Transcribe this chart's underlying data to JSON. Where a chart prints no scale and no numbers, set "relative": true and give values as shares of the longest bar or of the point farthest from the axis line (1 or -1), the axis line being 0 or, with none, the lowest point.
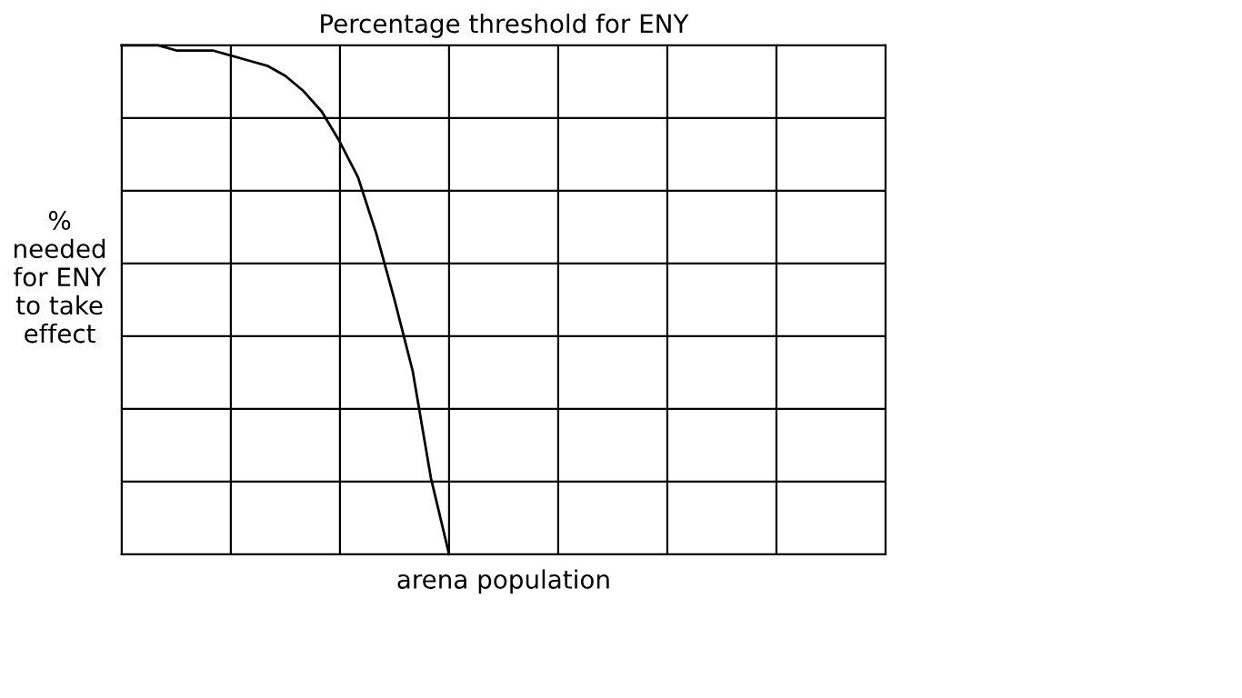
{
  "chart_data": {
    "type": "line",
    "title": "Percentage threshold for ENY",
    "xlabel": "arena population",
    "ylabel": "%\nneeded\nfor ENY\nto take\neffect",
    "relative": true,
    "grid": true,
    "marker": "none",
    "line_style": "solid",
    "categories": [
      null,
      null,
      null,
      null,
      null,
      null,
      null,
      null,
      null,
      null,
      null,
      null,
      null,
      null,
      null,
      null,
      null,
      null,
      null,
      null,
      null,
      null,
      null,
      null,
      null,
      null,
      null,
      null,
      null,
      null,
      null,
      null,
      null,
      null,
      null,
      null,
      null,
      null,
      null,
      null,
      null,
      null,
      null
    ],
    "series": [
      {
        "color": "#000000",
        "values": [
          1.0,
          1.0,
          1.0,
          0.99,
          0.99,
          0.99,
          0.98,
          0.97,
          0.96,
          0.94,
          0.91,
          0.87,
          0.81,
          0.74,
          0.63,
          0.5,
          0.36,
          0.15,
          0.0,
          null,
          null,
          null,
          null,
          null,
          null,
          null,
          null,
          null,
          null,
          null,
          null,
          null,
          null,
          null,
          null,
          null,
          null,
          null,
          null,
          null,
          null,
          null,
          null
        ]
      }
    ]
  }
}
